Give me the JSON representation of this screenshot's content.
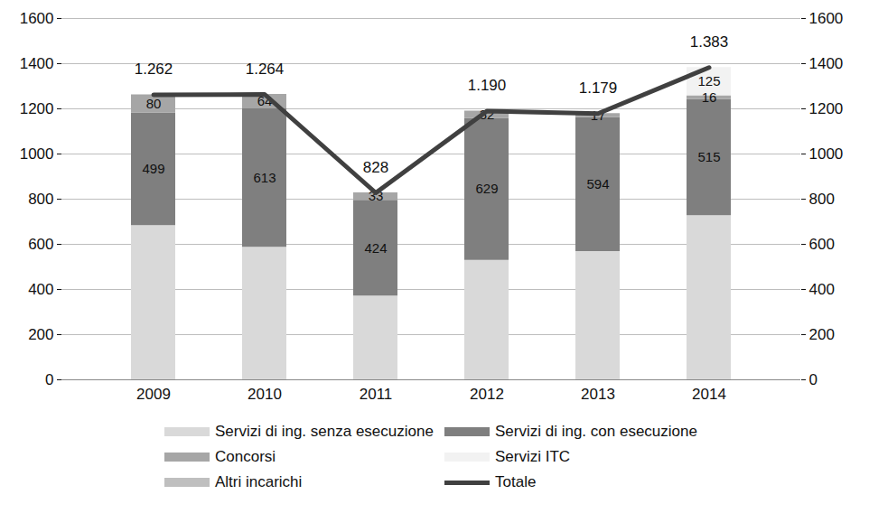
{
  "chart_data": {
    "type": "bar",
    "stacked": true,
    "grid": true,
    "categories": [
      "2009",
      "2010",
      "2011",
      "2012",
      "2013",
      "2014"
    ],
    "ylim": [
      0,
      1600
    ],
    "yticks": [
      0,
      200,
      400,
      600,
      800,
      1000,
      1200,
      1400,
      1600
    ],
    "y2lim": [
      0,
      1600
    ],
    "y2ticks": [
      0,
      200,
      400,
      600,
      800,
      1000,
      1200,
      1400,
      1600
    ],
    "legend": "bottom",
    "series": [
      {
        "name": "Servizi di ing. senza esecuzione",
        "type": "bar",
        "color": "#d9d9d9",
        "data_labels": false,
        "values": [
          683,
          587,
          371,
          529,
          568,
          727
        ]
      },
      {
        "name": "Servizi di ing. con esecuzione",
        "type": "bar",
        "color": "#7f7f7f",
        "data_labels": true,
        "values": [
          499,
          613,
          424,
          629,
          594,
          515
        ]
      },
      {
        "name": "Concorsi",
        "type": "bar",
        "color": "#a6a6a6",
        "data_labels": true,
        "values": [
          80,
          64,
          33,
          32,
          17,
          16
        ]
      },
      {
        "name": "Servizi ITC",
        "type": "bar",
        "color": "#f2f2f2",
        "data_labels": true,
        "values": [
          null,
          null,
          null,
          null,
          null,
          125
        ]
      },
      {
        "name": "Altri incarichi",
        "type": "bar",
        "color": "#bfbfbf",
        "data_labels": true,
        "values": [
          null,
          null,
          null,
          null,
          null,
          null
        ]
      },
      {
        "name": "Totale",
        "type": "line",
        "color": "#404040",
        "axis": "y2",
        "data_labels": true,
        "values": [
          1262,
          1264,
          828,
          1190,
          1179,
          1383
        ],
        "value_labels": [
          "1.262",
          "1.264",
          "828",
          "1.190",
          "1.179",
          "1.383"
        ]
      }
    ]
  }
}
